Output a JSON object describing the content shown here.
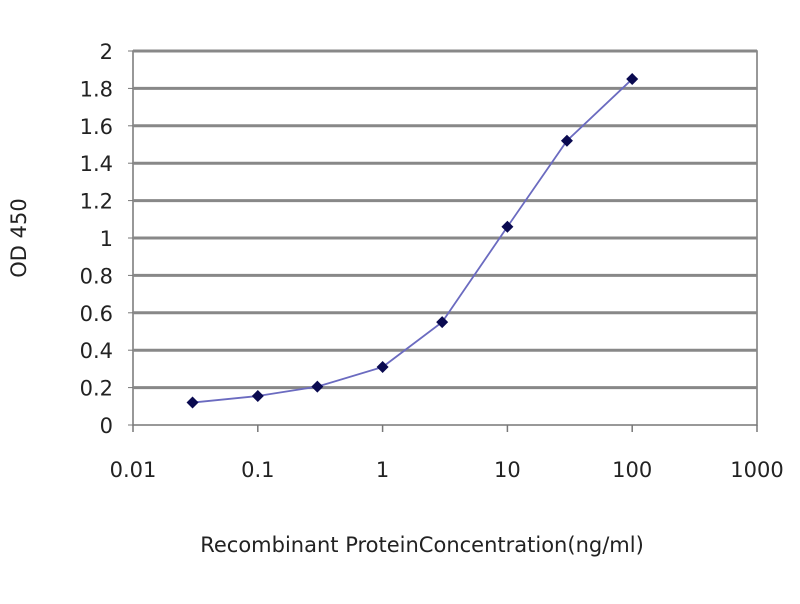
{
  "chart_data": {
    "type": "line",
    "title": "",
    "xlabel": "Recombinant ProteinConcentration(ng/ml)",
    "ylabel": "OD 450",
    "x_scale": "log",
    "xlim": [
      0.01,
      1000
    ],
    "ylim": [
      0,
      2
    ],
    "x_ticks": [
      "0.01",
      "0.1",
      "1",
      "10",
      "100",
      "1000"
    ],
    "y_ticks": [
      "0",
      "0.2",
      "0.4",
      "0.6",
      "0.8",
      "1",
      "1.2",
      "1.4",
      "1.6",
      "1.8",
      "2"
    ],
    "grid": "horizontal",
    "legend": "none",
    "series": [
      {
        "x": [
          0.03,
          0.1,
          0.3,
          1,
          3,
          10,
          30,
          100
        ],
        "y": [
          0.12,
          0.155,
          0.205,
          0.31,
          0.55,
          1.06,
          1.52,
          1.85
        ],
        "line_color": "#6b6bc0",
        "marker_color": "#0a0a50",
        "marker": "diamond"
      }
    ]
  }
}
